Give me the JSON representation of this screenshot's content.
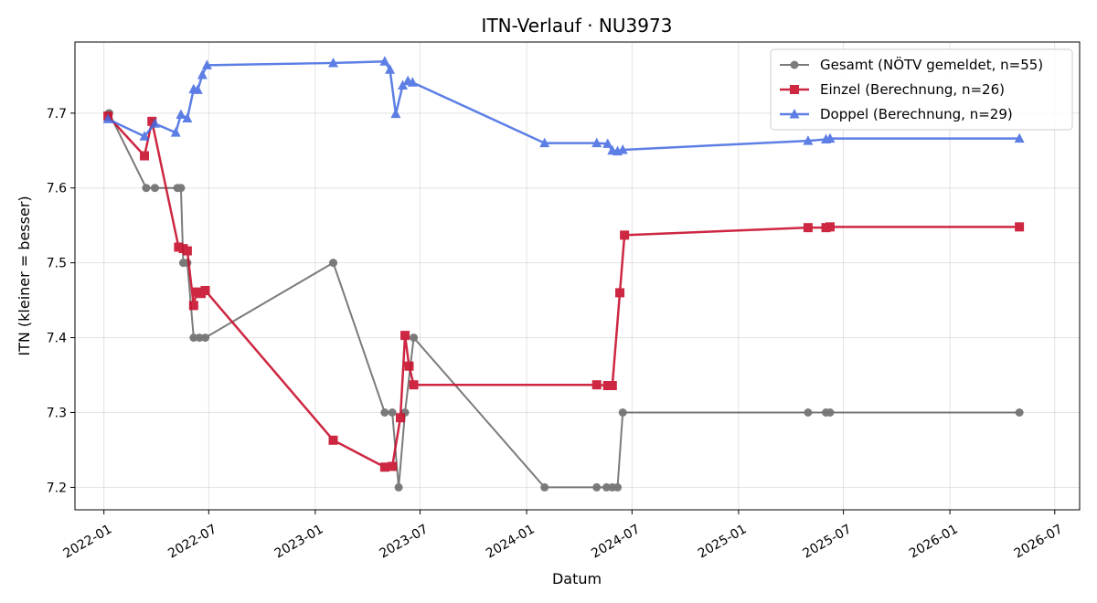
{
  "chart_data": {
    "type": "line",
    "title": "ITN-Verlauf · NU3973",
    "xlabel": "Datum",
    "ylabel": "ITN  (kleiner = besser)",
    "xlim": [
      "2021-11-12",
      "2026-08-13"
    ],
    "ylim": [
      7.17,
      7.795
    ],
    "x_ticks": [
      "2022-01",
      "2022-07",
      "2023-01",
      "2023-07",
      "2024-01",
      "2024-07",
      "2025-01",
      "2025-07",
      "2026-01",
      "2026-07"
    ],
    "y_ticks": [
      7.2,
      7.3,
      7.4,
      7.5,
      7.6,
      7.7
    ],
    "grid": true,
    "legend_position": "top-right",
    "series": [
      {
        "name": "Gesamt (NÖTV gemeldet, n=55)",
        "color": "#444444",
        "marker": "circle",
        "line_width": 2,
        "line_opacity": 0.7,
        "points": [
          [
            "2022-01-10",
            7.7
          ],
          [
            "2022-03-15",
            7.6
          ],
          [
            "2022-03-30",
            7.6
          ],
          [
            "2022-05-08",
            7.6
          ],
          [
            "2022-05-14",
            7.6
          ],
          [
            "2022-05-18",
            7.5
          ],
          [
            "2022-05-25",
            7.5
          ],
          [
            "2022-06-05",
            7.4
          ],
          [
            "2022-06-15",
            7.4
          ],
          [
            "2022-06-25",
            7.4
          ],
          [
            "2023-02-01",
            7.5
          ],
          [
            "2023-05-01",
            7.3
          ],
          [
            "2023-05-14",
            7.3
          ],
          [
            "2023-05-25",
            7.2
          ],
          [
            "2023-06-05",
            7.3
          ],
          [
            "2023-06-20",
            7.4
          ],
          [
            "2024-02-01",
            7.2
          ],
          [
            "2024-05-01",
            7.2
          ],
          [
            "2024-05-18",
            7.2
          ],
          [
            "2024-05-28",
            7.2
          ],
          [
            "2024-06-06",
            7.2
          ],
          [
            "2024-06-15",
            7.3
          ],
          [
            "2025-05-01",
            7.3
          ],
          [
            "2025-06-01",
            7.3
          ],
          [
            "2025-06-08",
            7.3
          ],
          [
            "2026-05-01",
            7.3
          ]
        ]
      },
      {
        "name": "Einzel (Berechnung, n=26)",
        "color": "#c8102e",
        "marker": "square",
        "line_width": 2.5,
        "line_opacity": 0.9,
        "points": [
          [
            "2022-01-08",
            7.696
          ],
          [
            "2022-03-12",
            7.643
          ],
          [
            "2022-03-25",
            7.689
          ],
          [
            "2022-05-10",
            7.521
          ],
          [
            "2022-05-18",
            7.519
          ],
          [
            "2022-05-25",
            7.516
          ],
          [
            "2022-06-05",
            7.443
          ],
          [
            "2022-06-10",
            7.461
          ],
          [
            "2022-06-18",
            7.459
          ],
          [
            "2022-06-25",
            7.463
          ],
          [
            "2023-02-01",
            7.263
          ],
          [
            "2023-05-01",
            7.227
          ],
          [
            "2023-05-14",
            7.228
          ],
          [
            "2023-05-28",
            7.293
          ],
          [
            "2023-06-05",
            7.403
          ],
          [
            "2023-06-12",
            7.362
          ],
          [
            "2023-06-20",
            7.337
          ],
          [
            "2024-05-01",
            7.337
          ],
          [
            "2024-05-20",
            7.336
          ],
          [
            "2024-05-28",
            7.336
          ],
          [
            "2024-06-10",
            7.46
          ],
          [
            "2024-06-18",
            7.537
          ],
          [
            "2025-05-01",
            7.547
          ],
          [
            "2025-06-01",
            7.547
          ],
          [
            "2025-06-08",
            7.548
          ],
          [
            "2026-05-01",
            7.548
          ]
        ]
      },
      {
        "name": "Doppel (Berechnung, n=29)",
        "color": "#4169e1",
        "marker": "triangle",
        "line_width": 2.5,
        "line_opacity": 0.85,
        "points": [
          [
            "2022-01-08",
            7.692
          ],
          [
            "2022-03-12",
            7.669
          ],
          [
            "2022-03-30",
            7.686
          ],
          [
            "2022-05-05",
            7.674
          ],
          [
            "2022-05-14",
            7.698
          ],
          [
            "2022-05-25",
            7.693
          ],
          [
            "2022-06-05",
            7.732
          ],
          [
            "2022-06-12",
            7.731
          ],
          [
            "2022-06-20",
            7.751
          ],
          [
            "2022-06-28",
            7.764
          ],
          [
            "2023-02-01",
            7.767
          ],
          [
            "2023-05-01",
            7.769
          ],
          [
            "2023-05-10",
            7.758
          ],
          [
            "2023-05-20",
            7.699
          ],
          [
            "2023-06-01",
            7.737
          ],
          [
            "2023-06-10",
            7.743
          ],
          [
            "2023-06-18",
            7.741
          ],
          [
            "2024-02-01",
            7.66
          ],
          [
            "2024-05-01",
            7.66
          ],
          [
            "2024-05-20",
            7.659
          ],
          [
            "2024-05-28",
            7.65
          ],
          [
            "2024-06-06",
            7.649
          ],
          [
            "2024-06-15",
            7.651
          ],
          [
            "2025-05-01",
            7.663
          ],
          [
            "2025-06-01",
            7.665
          ],
          [
            "2025-06-08",
            7.666
          ],
          [
            "2026-05-01",
            7.666
          ]
        ]
      }
    ]
  }
}
